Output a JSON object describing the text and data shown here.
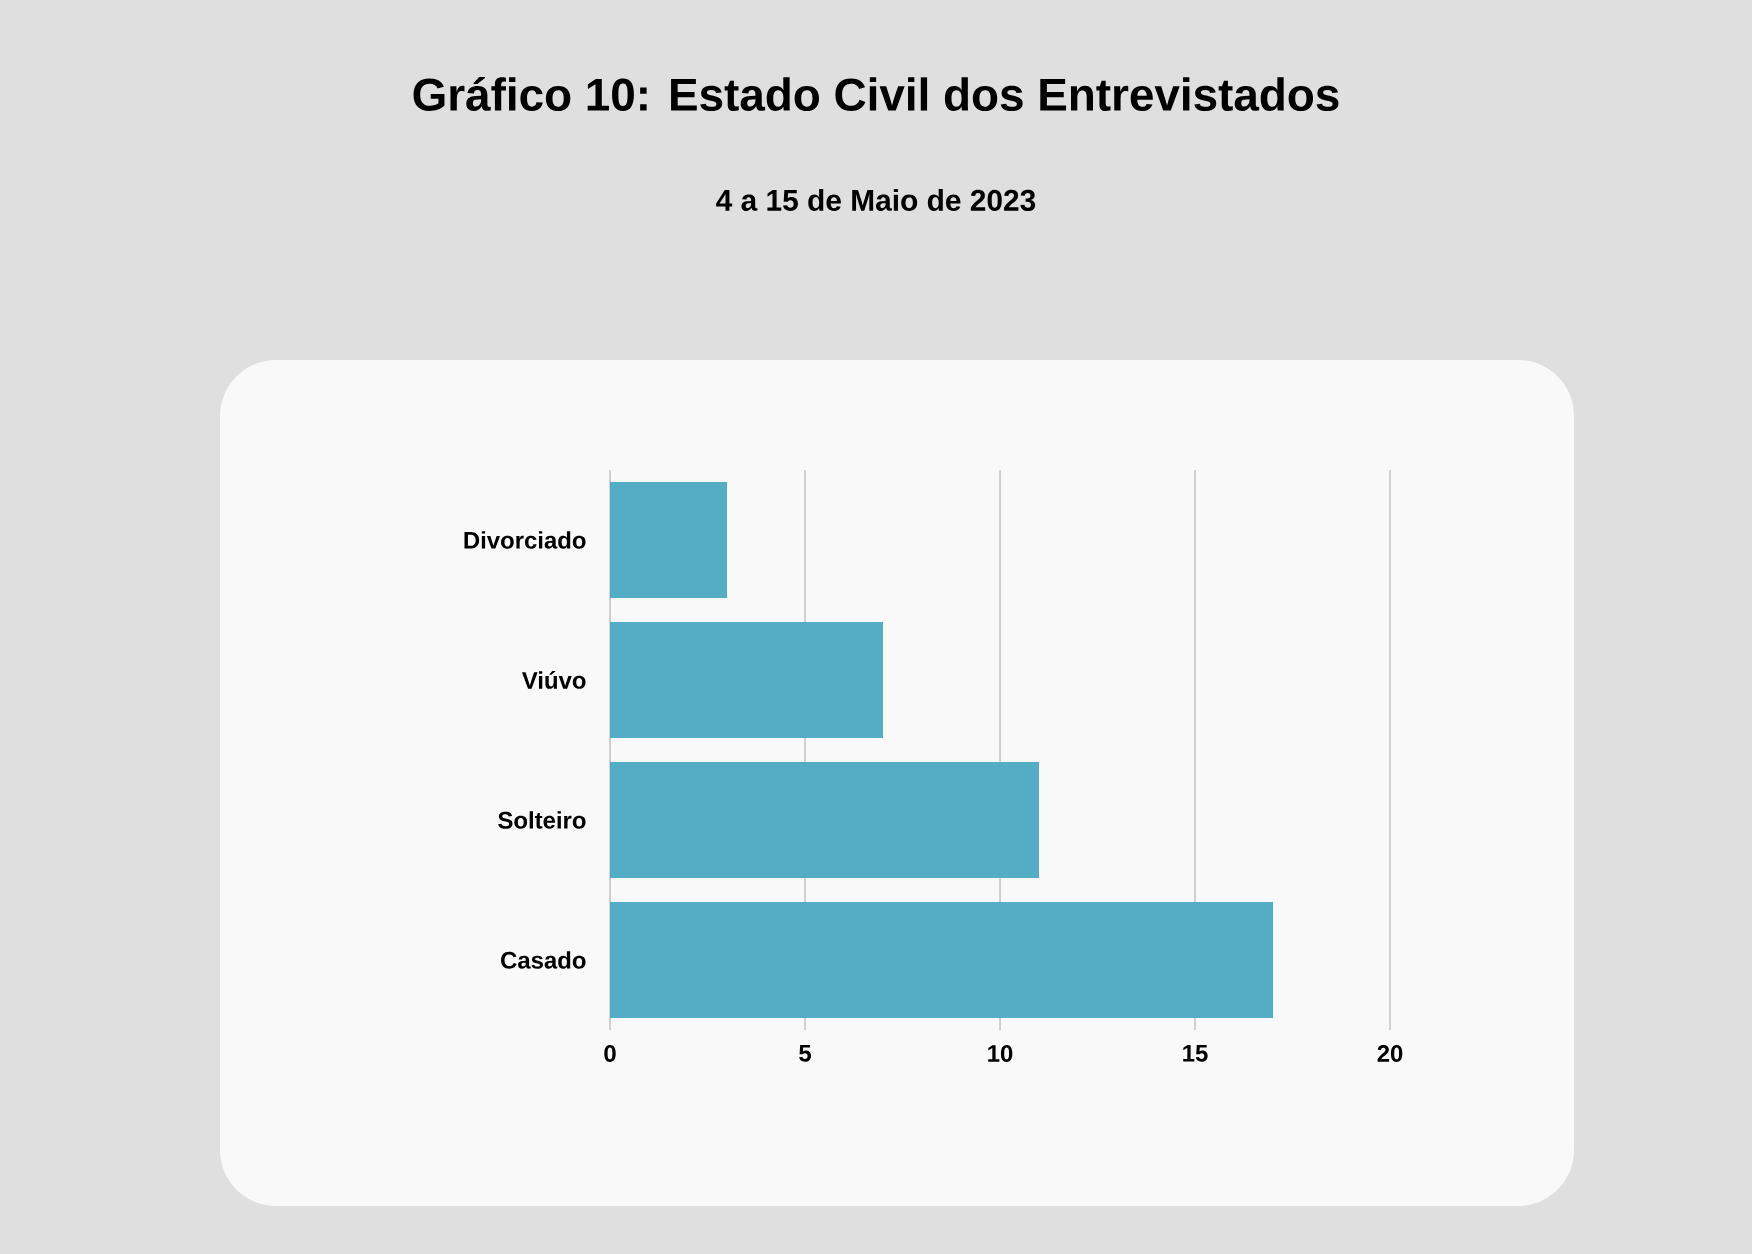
{
  "chart_data": {
    "type": "bar",
    "orientation": "horizontal",
    "title": "Gráfico 10: Estado Civil dos Entrevistados",
    "subtitle": "4 a 15 de Maio de 2023",
    "categories": [
      "Divorciado",
      "Viúvo",
      "Solteiro",
      "Casado"
    ],
    "values": [
      3,
      7,
      11,
      17
    ],
    "color": "#52adc5",
    "xlim": [
      0,
      20
    ],
    "xticks": [
      0,
      5,
      10,
      15,
      20
    ],
    "grid": "x"
  }
}
